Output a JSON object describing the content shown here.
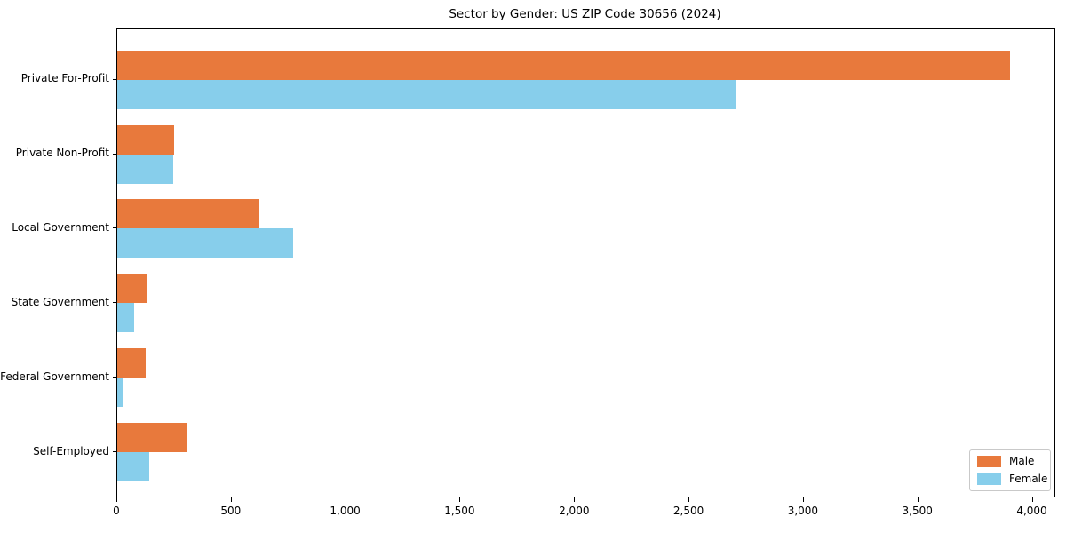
{
  "title": "Sector by Gender: US ZIP Code 30656 (2024)",
  "chart_data": {
    "type": "bar",
    "orientation": "horizontal",
    "title": "Sector by Gender: US ZIP Code 30656 (2024)",
    "xlabel": "",
    "ylabel": "",
    "grid": false,
    "legend_position": "lower right",
    "categories": [
      "Private For-Profit",
      "Private Non-Profit",
      "Local Government",
      "State Government",
      "Federal Government",
      "Self-Employed"
    ],
    "series": [
      {
        "name": "Male",
        "color": "#e8793c",
        "values": [
          3900,
          250,
          620,
          130,
          125,
          305
        ]
      },
      {
        "name": "Female",
        "color": "#87ceeb",
        "values": [
          2700,
          245,
          770,
          75,
          25,
          140
        ]
      }
    ],
    "xlim": [
      0,
      4095
    ],
    "xticks": [
      0,
      500,
      1000,
      1500,
      2000,
      2500,
      3000,
      3500,
      4000
    ],
    "xtick_labels": [
      "0",
      "500",
      "1,000",
      "1,500",
      "2,000",
      "2,500",
      "3,000",
      "3,500",
      "4,000"
    ]
  }
}
